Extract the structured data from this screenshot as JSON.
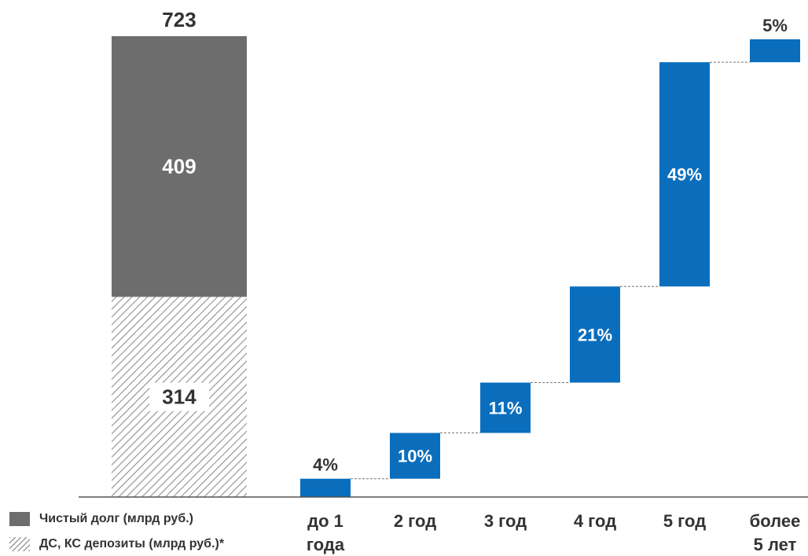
{
  "colors": {
    "net_debt": "#6d6d6d",
    "cash_hatch": "#9a9a9a",
    "maturity": "#0a6ebd",
    "axis": "#555555"
  },
  "legend": {
    "net_debt": "Чистый долг (млрд руб.)",
    "cash_deposits": "ДС, КС депозиты (млрд руб.)*"
  },
  "chart_data": [
    {
      "type": "bar",
      "stacked": true,
      "series": [
        {
          "name": "ДС, КС депозиты (млрд руб.)*",
          "values": [
            314
          ],
          "labels": [
            "314"
          ]
        },
        {
          "name": "Чистый долг (млрд руб.)",
          "values": [
            409
          ],
          "labels": [
            "409"
          ]
        }
      ],
      "total": 723,
      "total_label": "723"
    },
    {
      "type": "bar",
      "subtype": "waterfall",
      "categories": [
        [
          "до 1",
          "года"
        ],
        [
          "2 год"
        ],
        [
          "3 год"
        ],
        [
          "4 год"
        ],
        [
          "5 год"
        ],
        [
          "более",
          "5 лет"
        ]
      ],
      "values": [
        4,
        10,
        11,
        21,
        49,
        5
      ],
      "labels": [
        "4%",
        "10%",
        "11%",
        "21%",
        "49%",
        "5%"
      ],
      "unit": "%"
    }
  ]
}
